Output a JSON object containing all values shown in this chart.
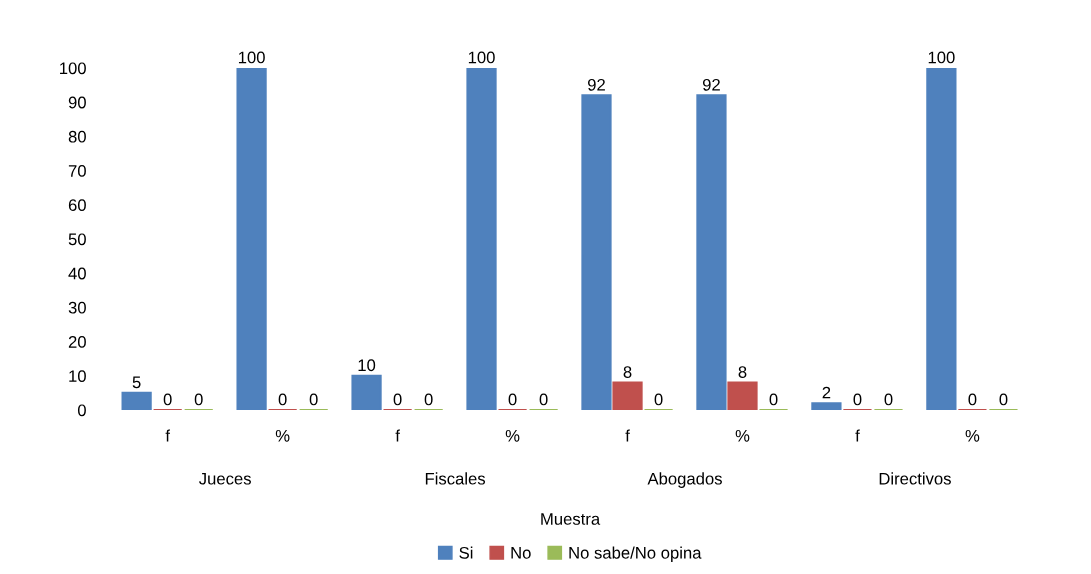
{
  "chart_data": {
    "type": "bar",
    "xlabel": "Muestra",
    "categories": [
      "f",
      "%",
      "f",
      "%",
      "f",
      "%",
      "f",
      "%"
    ],
    "series": [
      {
        "name": "Si",
        "color": "#4f81bd",
        "values": [
          5,
          100,
          10,
          100,
          92,
          92,
          2,
          100
        ]
      },
      {
        "name": "No",
        "color": "#c0504d",
        "values": [
          0,
          0,
          0,
          0,
          8,
          8,
          0,
          0
        ]
      },
      {
        "name": "No sabe/No opina",
        "color": "#9bbb59",
        "values": [
          0,
          0,
          0,
          0,
          0,
          0,
          0,
          0
        ]
      }
    ],
    "ylim": [
      0,
      100
    ],
    "yticks": [
      0,
      10,
      20,
      30,
      40,
      50,
      60,
      70,
      80,
      90,
      100
    ],
    "grid": false,
    "legend": "bottom",
    "data_labels": true,
    "annotations": [
      "Jueces",
      "Fiscales",
      "Abogados",
      "Directivos"
    ]
  }
}
